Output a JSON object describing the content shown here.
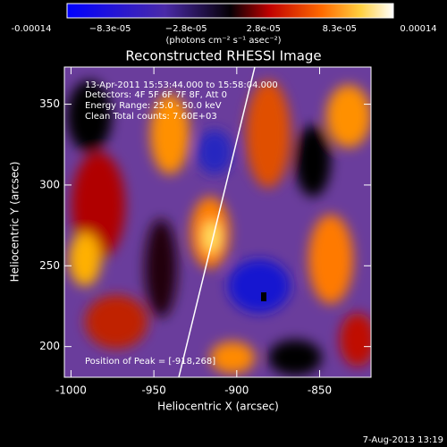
{
  "chart_data": {
    "type": "image",
    "title": "Reconstructed RHESSI Image",
    "colorbar_label": "(photons cm⁻² s⁻¹ asec⁻²)",
    "colorbar_lim": [
      -0.00014,
      0.00014
    ],
    "colorbar_ticks": [
      -0.00014,
      {
        "value": -8.3e-05,
        "label": "−8.3e-05"
      },
      {
        "value": -2.8e-05,
        "label": "−2.8e-05"
      },
      {
        "value": 2.8e-05,
        "label": "2.8e-05"
      },
      {
        "value": 8.3e-05,
        "label": "8.3e-05"
      },
      0.00014
    ],
    "xlabel": "Heliocentric X (arcsec)",
    "ylabel": "Heliocentric Y (arcsec)",
    "xlim": [
      -1004,
      -819
    ],
    "ylim": [
      181,
      373
    ],
    "xticks": [
      -1000,
      -950,
      -900,
      -850
    ],
    "yticks": [
      200,
      250,
      300,
      350
    ],
    "annotations": [
      "13-Apr-2011 15:53:44.000 to 15:58:04.000",
      "Detectors: 4F 5F 6F 7F 8F, Att 0",
      "Energy Range: 25.0 - 50.0 keV",
      "Clean    Total counts: 7.60E+03",
      "Position of Peak = [-918,268]"
    ],
    "footer": "7-Aug-2013 13:19"
  }
}
